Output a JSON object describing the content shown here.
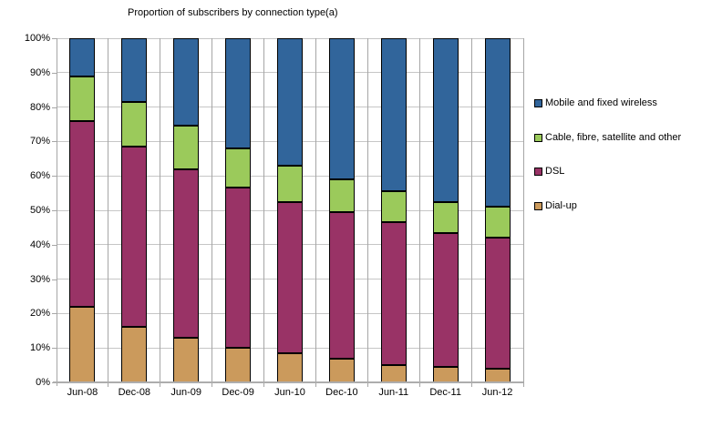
{
  "chart_data": {
    "type": "bar",
    "stacked": true,
    "title": "Proportion of subscribers by connection type(a)",
    "categories": [
      "Jun-08",
      "Dec-08",
      "Jun-09",
      "Dec-09",
      "Jun-10",
      "Dec-10",
      "Jun-11",
      "Dec-11",
      "Jun-12"
    ],
    "series": [
      {
        "name": "Dial-up",
        "color": "#CB9A5C",
        "values": [
          22,
          16,
          13,
          10,
          8.5,
          7,
          5,
          4.5,
          4
        ]
      },
      {
        "name": "DSL",
        "color": "#993366",
        "values": [
          54,
          52.5,
          49,
          46.5,
          44,
          42.5,
          41.5,
          39,
          38
        ]
      },
      {
        "name": "Cable, fibre, satellite and other",
        "color": "#9BCA5B",
        "values": [
          13,
          13,
          12.5,
          11.5,
          10.5,
          9.5,
          9,
          9,
          9
        ]
      },
      {
        "name": "Mobile and fixed wireless",
        "color": "#31659B",
        "values": [
          11,
          18.5,
          25.5,
          32,
          37,
          41,
          44.5,
          47.5,
          49
        ]
      }
    ],
    "legend_order": [
      "Mobile and fixed wireless",
      "Cable, fibre, satellite and other",
      "DSL",
      "Dial-up"
    ],
    "legend_position": "right",
    "xlabel": "",
    "ylabel": "",
    "ylim": [
      0,
      100
    ],
    "yticks": [
      0,
      10,
      20,
      30,
      40,
      50,
      60,
      70,
      80,
      90,
      100
    ],
    "ytick_suffix": "%",
    "grid": true
  },
  "styles": {
    "background": "#FFFFFF",
    "h_gridline_color": "#C6C6C6",
    "v_gridline_color": "#A6A6A6",
    "axis_color": "#ADADAD",
    "bar_border_color": "#000000",
    "text_color": "#000000"
  }
}
